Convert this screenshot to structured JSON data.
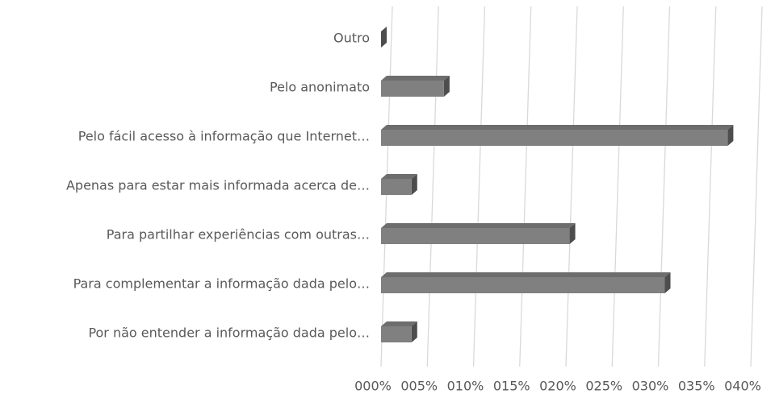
{
  "chart_data": {
    "type": "bar3d_horizontal",
    "categories": [
      "Outro",
      "Pelo anonimato",
      "Pelo fácil acesso à informação que Internet…",
      "Apenas para estar mais informada acerca de…",
      "Para partilhar experiências com outras…",
      "Para complementar a informação dada pelo…",
      "Por não entender a informação dada pelo…"
    ],
    "values": [
      0,
      6.8,
      37.5,
      3.3,
      20.4,
      30.7,
      3.3
    ],
    "color": "#808080",
    "xlim": [
      0,
      40
    ],
    "xticks": [
      {
        "value": 0,
        "label": "000%"
      },
      {
        "value": 5,
        "label": "005%"
      },
      {
        "value": 10,
        "label": "010%"
      },
      {
        "value": 15,
        "label": "015%"
      },
      {
        "value": 20,
        "label": "020%"
      },
      {
        "value": 25,
        "label": "025%"
      },
      {
        "value": 30,
        "label": "030%"
      },
      {
        "value": 35,
        "label": "035%"
      },
      {
        "value": 40,
        "label": "040%"
      }
    ],
    "grid": true
  }
}
